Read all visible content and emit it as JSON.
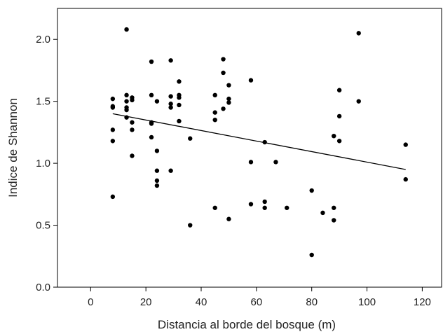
{
  "chart_data": {
    "type": "scatter",
    "title": "",
    "xlabel": "Distancia al borde del bosque (m)",
    "ylabel": "Indice de Shannon",
    "xlim": [
      -12,
      127
    ],
    "ylim": [
      0,
      2.25
    ],
    "xticks": [
      0,
      20,
      40,
      60,
      80,
      100,
      120
    ],
    "yticks": [
      0.0,
      0.5,
      1.0,
      1.5,
      2.0
    ],
    "xtick_labels": [
      "0",
      "20",
      "40",
      "60",
      "80",
      "100",
      "120"
    ],
    "ytick_labels": [
      "0.0",
      "0.5",
      "1.0",
      "1.5",
      "2.0"
    ],
    "grid": false,
    "legend": "none",
    "colors": {
      "point": "#000000",
      "line": "#000000",
      "axis": "#000000"
    },
    "trendline": {
      "x": [
        8,
        114
      ],
      "y": [
        1.4,
        0.95
      ]
    },
    "series": [
      {
        "points": [
          [
            8,
            1.52
          ],
          [
            8,
            1.46
          ],
          [
            8,
            1.45
          ],
          [
            8,
            1.27
          ],
          [
            8,
            1.18
          ],
          [
            8,
            0.73
          ],
          [
            13,
            2.08
          ],
          [
            13,
            1.55
          ],
          [
            13,
            1.5
          ],
          [
            13,
            1.45
          ],
          [
            13,
            1.43
          ],
          [
            13,
            1.37
          ],
          [
            15,
            1.53
          ],
          [
            15,
            1.51
          ],
          [
            15,
            1.33
          ],
          [
            15,
            1.27
          ],
          [
            15,
            1.06
          ],
          [
            22,
            1.82
          ],
          [
            22,
            1.55
          ],
          [
            22,
            1.33
          ],
          [
            22,
            1.32
          ],
          [
            22,
            1.21
          ],
          [
            24,
            1.5
          ],
          [
            24,
            1.1
          ],
          [
            24,
            0.94
          ],
          [
            24,
            0.86
          ],
          [
            24,
            0.82
          ],
          [
            29,
            1.83
          ],
          [
            29,
            1.54
          ],
          [
            29,
            1.48
          ],
          [
            29,
            1.45
          ],
          [
            29,
            0.94
          ],
          [
            32,
            1.66
          ],
          [
            32,
            1.55
          ],
          [
            32,
            1.53
          ],
          [
            32,
            1.47
          ],
          [
            32,
            1.34
          ],
          [
            36,
            1.2
          ],
          [
            36,
            0.5
          ],
          [
            45,
            1.55
          ],
          [
            45,
            1.41
          ],
          [
            45,
            1.35
          ],
          [
            45,
            0.64
          ],
          [
            48,
            1.84
          ],
          [
            48,
            1.73
          ],
          [
            48,
            1.44
          ],
          [
            50,
            1.63
          ],
          [
            50,
            1.52
          ],
          [
            50,
            1.49
          ],
          [
            50,
            0.55
          ],
          [
            58,
            1.67
          ],
          [
            58,
            1.01
          ],
          [
            58,
            0.67
          ],
          [
            63,
            1.17
          ],
          [
            63,
            0.69
          ],
          [
            63,
            0.64
          ],
          [
            67,
            1.01
          ],
          [
            71,
            0.64
          ],
          [
            80,
            0.78
          ],
          [
            80,
            0.26
          ],
          [
            84,
            0.6
          ],
          [
            88,
            1.22
          ],
          [
            88,
            0.64
          ],
          [
            88,
            0.54
          ],
          [
            90,
            1.59
          ],
          [
            90,
            1.38
          ],
          [
            90,
            1.18
          ],
          [
            97,
            2.05
          ],
          [
            97,
            1.5
          ],
          [
            114,
            1.15
          ],
          [
            114,
            0.87
          ]
        ]
      }
    ]
  }
}
